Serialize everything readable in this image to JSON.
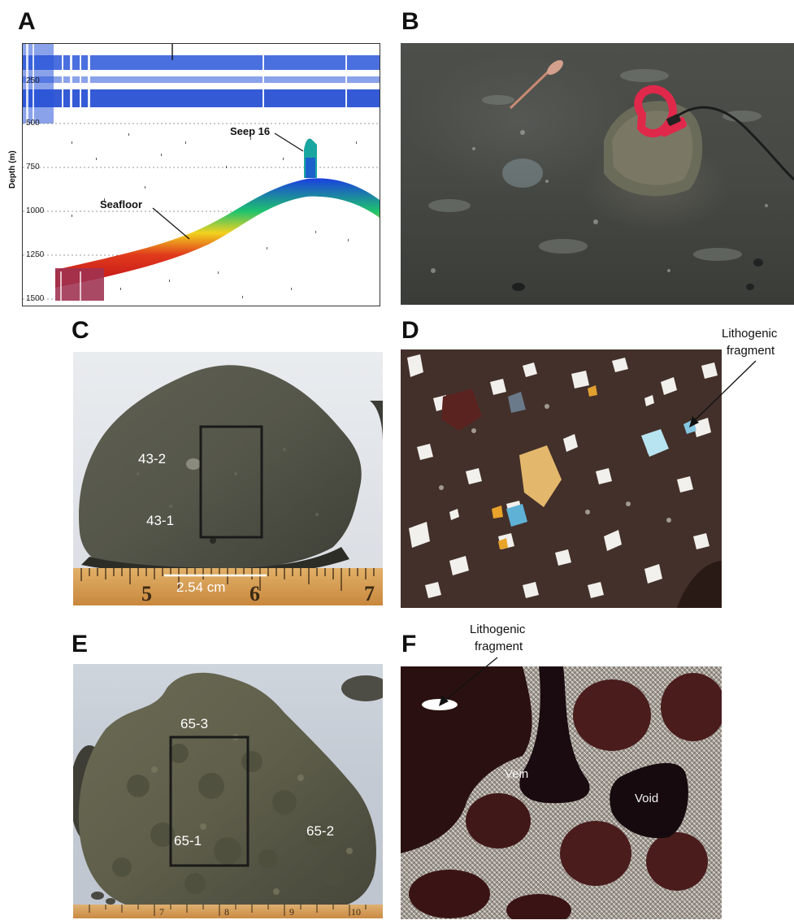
{
  "panels": {
    "a": {
      "label": "A",
      "y_axis_label": "Depth (m)",
      "ticks": [
        "250",
        "500",
        "750",
        "1000",
        "1250",
        "1500"
      ],
      "seep_label": "Seep 16",
      "seafloor_label": "Seafloor"
    },
    "b": {
      "label": "B"
    },
    "c": {
      "label": "C",
      "sample_upper": "43-2",
      "sample_lower": "43-1",
      "scale_label": "2.54 cm",
      "ruler_numbers": [
        "5",
        "6",
        "7"
      ]
    },
    "d": {
      "label": "D",
      "annotation_line1": "Lithogenic",
      "annotation_line2": "fragment"
    },
    "e": {
      "label": "E",
      "sample_top": "65-3",
      "sample_left": "65-1",
      "sample_right": "65-2",
      "ruler_numbers": [
        "7",
        "8",
        "9",
        "10"
      ]
    },
    "f": {
      "label": "F",
      "annotation_line1": "Lithogenic",
      "annotation_line2": "fragment",
      "vein_label": "Vein",
      "void_label": "Void"
    }
  },
  "colors": {
    "echo_blue": "#1f4fd1",
    "seafloor_red": "#d81f26",
    "rock_gray": "#5d5e50",
    "shackle_red": "#e0284b"
  }
}
